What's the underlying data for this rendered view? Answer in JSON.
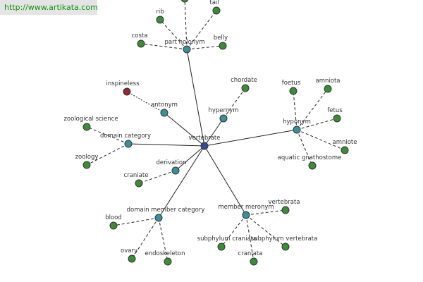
{
  "watermark": "http://www.artikata.com",
  "colors": {
    "center": "#3a4a8f",
    "category": "#3e8e9a",
    "leaf": "#3f8a3a",
    "special": "#8b2d36",
    "node_border": "#333333",
    "edge": "#222222"
  },
  "center": {
    "label": "vertebrate"
  },
  "categories": [
    {
      "label": "part holonym",
      "leaves": [
        "rib",
        "tail",
        "costa",
        "belly",
        ""
      ]
    },
    {
      "label": "antonym",
      "leaves": [
        "inspineless"
      ]
    },
    {
      "label": "hypernym",
      "leaves": [
        "chordate"
      ]
    },
    {
      "label": "hyponym",
      "leaves": [
        "foetus",
        "amniota",
        "fetus",
        "amniote",
        "aquatic gnathostome"
      ]
    },
    {
      "label": "domain category",
      "leaves": [
        "zoological science",
        "zoology"
      ]
    },
    {
      "label": "derivation",
      "leaves": [
        "craniate"
      ]
    },
    {
      "label": "domain member category",
      "leaves": [
        "blood",
        "ovary",
        "endoskeleton"
      ]
    },
    {
      "label": "member meronym",
      "leaves": [
        "vertebrata",
        "subphylum craniata",
        "subphylum vertebrata",
        "craniata"
      ]
    }
  ]
}
